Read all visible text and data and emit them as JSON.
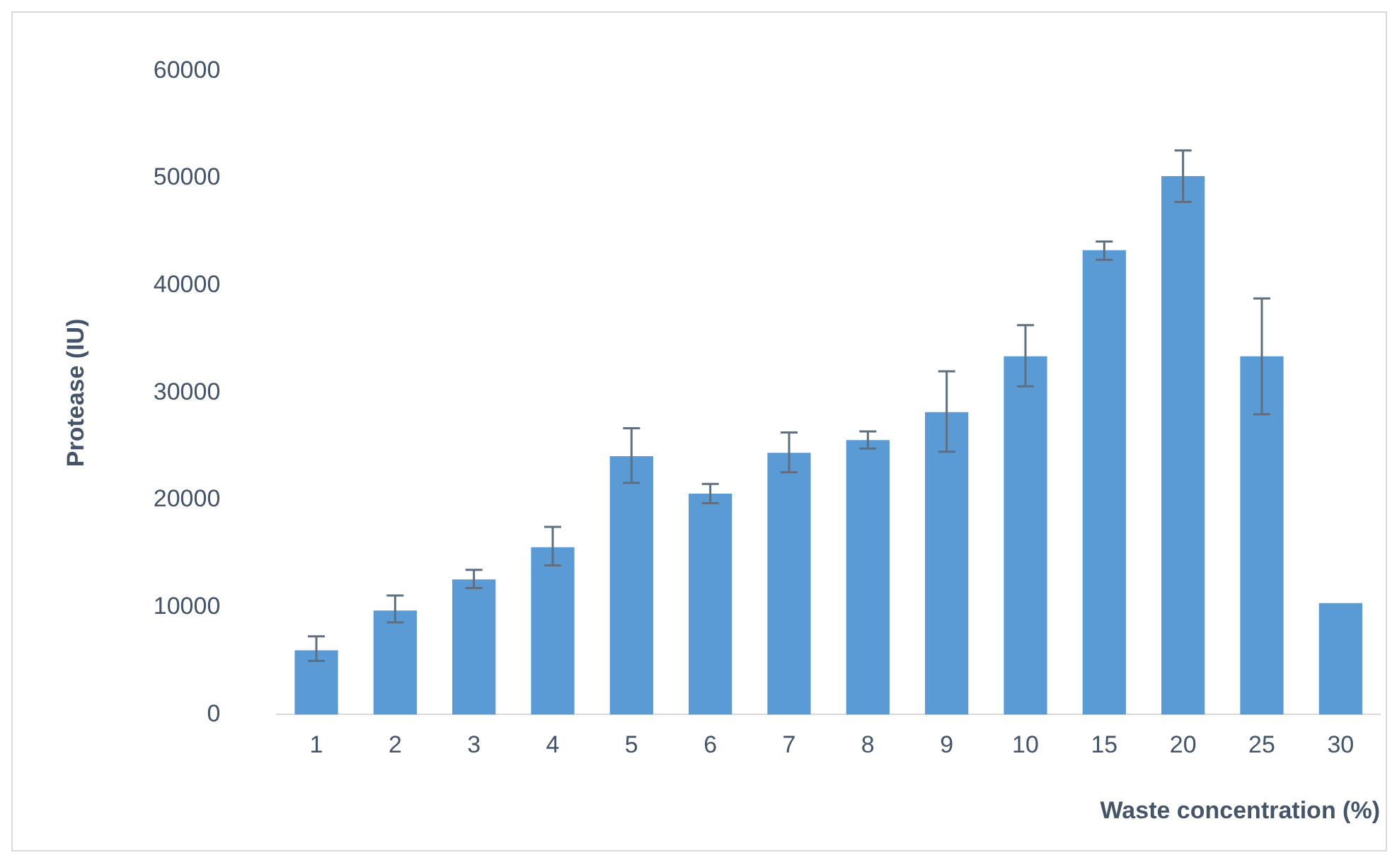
{
  "chart_data": {
    "type": "bar",
    "xlabel": "Waste concentration (%)",
    "ylabel": "Protease (IU)",
    "categories": [
      "1",
      "2",
      "3",
      "4",
      "5",
      "6",
      "7",
      "8",
      "9",
      "10",
      "15",
      "20",
      "25",
      "30"
    ],
    "series": [
      {
        "color": "#5b9bd5",
        "values": [
          6000,
          9700,
          12600,
          15600,
          24100,
          20600,
          24400,
          25600,
          28200,
          33400,
          43300,
          50200,
          33400,
          10400
        ],
        "errors": [
          [
            5000,
            7300
          ],
          [
            8600,
            11100
          ],
          [
            11800,
            13500
          ],
          [
            13900,
            17500
          ],
          [
            21600,
            26700
          ],
          [
            19700,
            21500
          ],
          [
            22600,
            26300
          ],
          [
            24800,
            26400
          ],
          [
            24500,
            32000
          ],
          [
            30600,
            36300
          ],
          [
            42400,
            44100
          ],
          [
            47800,
            52600
          ],
          [
            28000,
            38800
          ],
          null
        ]
      }
    ],
    "ylim": [
      0,
      60000
    ],
    "yticks": [
      0,
      10000,
      20000,
      30000,
      40000,
      50000,
      60000
    ],
    "grid": false,
    "legend": false
  }
}
